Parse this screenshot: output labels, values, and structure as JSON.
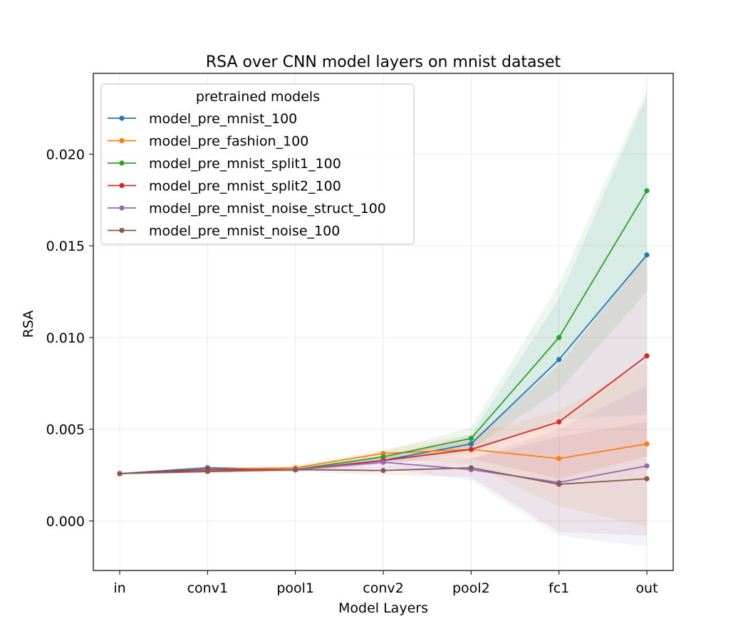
{
  "chart_data": {
    "type": "line",
    "title": "RSA over CNN model layers on mnist dataset",
    "xlabel": "Model Layers",
    "ylabel": "RSA",
    "categories": [
      "in",
      "conv1",
      "pool1",
      "conv2",
      "pool2",
      "fc1",
      "out"
    ],
    "ylim": [
      -0.0027,
      0.0244
    ],
    "yticks": [
      0.0,
      0.005,
      0.01,
      0.015,
      0.02
    ],
    "ytick_labels": [
      "0.000",
      "0.005",
      "0.010",
      "0.015",
      "0.020"
    ],
    "grid": true,
    "legend": {
      "title": "pretrained models",
      "placement": "top-left"
    },
    "series": [
      {
        "name": "model_pre_mnist_100",
        "color": "#1f77b4",
        "values": [
          0.00258,
          0.0029,
          0.00278,
          0.0033,
          0.0042,
          0.0088,
          0.0145
        ],
        "lower": [
          0.00258,
          0.0028,
          0.0027,
          0.0031,
          0.0037,
          0.0055,
          0.0058
        ],
        "upper": [
          0.00258,
          0.003,
          0.0029,
          0.0035,
          0.0047,
          0.0121,
          0.0232
        ]
      },
      {
        "name": "model_pre_fashion_100",
        "color": "#ff7f0e",
        "values": [
          0.00258,
          0.0028,
          0.0029,
          0.00368,
          0.0039,
          0.0034,
          0.0042
        ],
        "lower": [
          0.00258,
          0.0027,
          0.0028,
          0.0034,
          0.0031,
          0.0008,
          -0.0003
        ],
        "upper": [
          0.00258,
          0.0029,
          0.003,
          0.0039,
          0.0047,
          0.006,
          0.0087
        ]
      },
      {
        "name": "model_pre_mnist_split1_100",
        "color": "#2ca02c",
        "values": [
          0.00258,
          0.0028,
          0.0028,
          0.0035,
          0.0045,
          0.01,
          0.018
        ],
        "lower": [
          0.00258,
          0.0027,
          0.0027,
          0.0032,
          0.0039,
          0.0071,
          0.0125
        ],
        "upper": [
          0.00258,
          0.0029,
          0.0029,
          0.0038,
          0.0051,
          0.0129,
          0.0235
        ]
      },
      {
        "name": "model_pre_mnist_split2_100",
        "color": "#d62728",
        "values": [
          0.00258,
          0.0028,
          0.0028,
          0.0033,
          0.0039,
          0.0054,
          0.009
        ],
        "lower": [
          0.00258,
          0.0027,
          0.0027,
          0.0031,
          0.0034,
          0.0023,
          0.0035
        ],
        "upper": [
          0.00258,
          0.0029,
          0.0029,
          0.0035,
          0.0044,
          0.0085,
          0.0145
        ]
      },
      {
        "name": "model_pre_mnist_noise_struct_100",
        "color": "#9467bd",
        "values": [
          0.00258,
          0.0027,
          0.0028,
          0.0032,
          0.0028,
          0.0021,
          0.003
        ],
        "lower": [
          0.00258,
          0.0026,
          0.0027,
          0.0029,
          0.0022,
          -0.0008,
          -0.0014
        ],
        "upper": [
          0.00258,
          0.0028,
          0.0029,
          0.0035,
          0.0034,
          0.005,
          0.0074
        ]
      },
      {
        "name": "model_pre_mnist_noise_100",
        "color": "#8c564b",
        "values": [
          0.00258,
          0.0027,
          0.0028,
          0.00275,
          0.0029,
          0.002,
          0.0023
        ],
        "lower": [
          0.00258,
          0.0026,
          0.0027,
          0.0025,
          0.0024,
          -0.0006,
          -0.0008
        ],
        "upper": [
          0.00258,
          0.0028,
          0.0029,
          0.003,
          0.0034,
          0.0046,
          0.0054
        ]
      }
    ]
  }
}
